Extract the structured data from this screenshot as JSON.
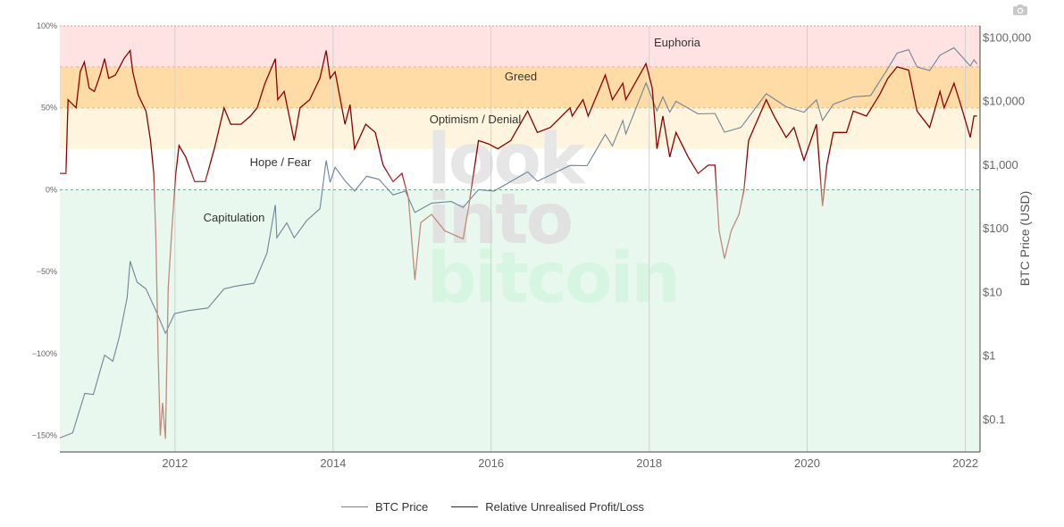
{
  "toolbar": {
    "camera_icon": "camera-icon"
  },
  "colors": {
    "euphoria_zone": "#ffe3e3",
    "greed_zone": "#ffdca6",
    "optimism_zone": "#fff4dd",
    "hope_zone": "#ffffff",
    "capitulation_zone": "#e8f8ee",
    "btc_price": "#6e8499",
    "nupl": "#8b0000",
    "nupl_faded": "#c28a7a",
    "zero_line": "#5fae90"
  },
  "watermark": [
    "look",
    "into",
    "bitcoin"
  ],
  "chart_data": {
    "type": "line",
    "title": "",
    "xlabel": "",
    "ylabel_left": "",
    "ylabel_right": "BTC Price (USD)",
    "x_range": [
      "2010-07-18",
      "2022-03-10"
    ],
    "x_ticks": [
      "2012",
      "2014",
      "2016",
      "2018",
      "2020",
      "2022"
    ],
    "y_left_range": [
      -1.6,
      1.0
    ],
    "y_left_ticks": [
      "100%",
      "50%",
      "0%",
      "−50%",
      "−100%",
      "−150%"
    ],
    "y_right_scale": "log",
    "y_right_range": [
      0.03,
      150000
    ],
    "y_right_ticks": [
      "$100,000",
      "$10,000",
      "$1,000",
      "$100",
      "$10",
      "$1",
      "$0.1"
    ],
    "grid": true,
    "legend_position": "bottom-center",
    "zones": [
      {
        "name": "Euphoria",
        "from": 0.75,
        "to": 1.0
      },
      {
        "name": "Greed",
        "from": 0.5,
        "to": 0.75
      },
      {
        "name": "Optimism / Denial",
        "from": 0.25,
        "to": 0.5
      },
      {
        "name": "Hope / Fear",
        "from": 0.0,
        "to": 0.25
      },
      {
        "name": "Capitulation",
        "from": -1.6,
        "to": 0.0
      }
    ],
    "series": [
      {
        "name": "BTC Price",
        "axis": "right",
        "points": [
          [
            "2010-07-18",
            0.05
          ],
          [
            "2010-09-15",
            0.06
          ],
          [
            "2010-11-10",
            0.25
          ],
          [
            "2010-12-20",
            0.24
          ],
          [
            "2011-02-10",
            1.0
          ],
          [
            "2011-03-20",
            0.8
          ],
          [
            "2011-04-20",
            2.0
          ],
          [
            "2011-05-25",
            8.0
          ],
          [
            "2011-06-08",
            30.0
          ],
          [
            "2011-07-10",
            14.0
          ],
          [
            "2011-08-20",
            11.0
          ],
          [
            "2011-10-05",
            5.0
          ],
          [
            "2011-11-18",
            2.2
          ],
          [
            "2011-12-30",
            4.5
          ],
          [
            "2012-03-01",
            5.0
          ],
          [
            "2012-06-01",
            5.5
          ],
          [
            "2012-08-15",
            11.0
          ],
          [
            "2012-10-01",
            12.0
          ],
          [
            "2013-01-01",
            13.5
          ],
          [
            "2013-03-01",
            40.0
          ],
          [
            "2013-04-09",
            230.0
          ],
          [
            "2013-04-16",
            70.0
          ],
          [
            "2013-06-01",
            120.0
          ],
          [
            "2013-07-05",
            70.0
          ],
          [
            "2013-09-01",
            130.0
          ],
          [
            "2013-11-01",
            200.0
          ],
          [
            "2013-11-30",
            1150.0
          ],
          [
            "2013-12-18",
            520.0
          ],
          [
            "2014-01-10",
            900.0
          ],
          [
            "2014-02-25",
            550.0
          ],
          [
            "2014-04-10",
            380.0
          ],
          [
            "2014-06-05",
            650.0
          ],
          [
            "2014-08-01",
            580.0
          ],
          [
            "2014-10-05",
            330.0
          ],
          [
            "2014-12-01",
            380.0
          ],
          [
            "2015-01-14",
            175.0
          ],
          [
            "2015-04-01",
            245.0
          ],
          [
            "2015-07-01",
            260.0
          ],
          [
            "2015-08-25",
            210.0
          ],
          [
            "2015-11-04",
            400.0
          ],
          [
            "2016-01-15",
            380.0
          ],
          [
            "2016-06-18",
            760.0
          ],
          [
            "2016-08-02",
            540.0
          ],
          [
            "2016-12-31",
            960.0
          ],
          [
            "2017-03-20",
            950.0
          ],
          [
            "2017-06-12",
            2950.0
          ],
          [
            "2017-07-15",
            1950.0
          ],
          [
            "2017-09-01",
            4900.0
          ],
          [
            "2017-09-15",
            3000.0
          ],
          [
            "2017-12-17",
            19000.0
          ],
          [
            "2018-02-06",
            6900.0
          ],
          [
            "2018-03-05",
            11500.0
          ],
          [
            "2018-04-06",
            6600.0
          ],
          [
            "2018-05-05",
            9800.0
          ],
          [
            "2018-08-15",
            6200.0
          ],
          [
            "2018-11-01",
            6300.0
          ],
          [
            "2018-12-15",
            3200.0
          ],
          [
            "2019-03-01",
            3800.0
          ],
          [
            "2019-06-26",
            12900.0
          ],
          [
            "2019-09-26",
            8000.0
          ],
          [
            "2019-12-17",
            6600.0
          ],
          [
            "2020-02-13",
            10300.0
          ],
          [
            "2020-03-12",
            4900.0
          ],
          [
            "2020-05-01",
            8800.0
          ],
          [
            "2020-08-01",
            11500.0
          ],
          [
            "2020-10-20",
            12000.0
          ],
          [
            "2020-12-31",
            29000.0
          ],
          [
            "2021-02-20",
            56000.0
          ],
          [
            "2021-04-14",
            63500.0
          ],
          [
            "2021-05-23",
            34000.0
          ],
          [
            "2021-07-20",
            29800.0
          ],
          [
            "2021-09-06",
            52000.0
          ],
          [
            "2021-11-10",
            68000.0
          ],
          [
            "2022-01-24",
            35000.0
          ],
          [
            "2022-02-10",
            44000.0
          ],
          [
            "2022-02-24",
            38000.0
          ]
        ]
      },
      {
        "name": "Relative Unrealised Profit/Loss",
        "axis": "left",
        "points": [
          [
            "2010-07-18",
            0.1
          ],
          [
            "2010-08-15",
            0.1
          ],
          [
            "2010-08-25",
            0.55
          ],
          [
            "2010-10-01",
            0.5
          ],
          [
            "2010-10-20",
            0.72
          ],
          [
            "2010-11-08",
            0.78
          ],
          [
            "2010-12-01",
            0.62
          ],
          [
            "2010-12-25",
            0.6
          ],
          [
            "2011-01-20",
            0.7
          ],
          [
            "2011-02-10",
            0.8
          ],
          [
            "2011-03-01",
            0.68
          ],
          [
            "2011-04-01",
            0.7
          ],
          [
            "2011-05-10",
            0.8
          ],
          [
            "2011-06-08",
            0.85
          ],
          [
            "2011-06-20",
            0.72
          ],
          [
            "2011-07-15",
            0.58
          ],
          [
            "2011-08-20",
            0.48
          ],
          [
            "2011-09-10",
            0.3
          ],
          [
            "2011-09-25",
            0.1
          ],
          [
            "2011-10-05",
            -0.3
          ],
          [
            "2011-10-15",
            -1.0
          ],
          [
            "2011-10-25",
            -1.5
          ],
          [
            "2011-11-05",
            -1.3
          ],
          [
            "2011-11-18",
            -1.52
          ],
          [
            "2011-12-01",
            -0.6
          ],
          [
            "2011-12-20",
            -0.2
          ],
          [
            "2012-01-05",
            0.1
          ],
          [
            "2012-01-20",
            0.27
          ],
          [
            "2012-02-20",
            0.2
          ],
          [
            "2012-04-01",
            0.05
          ],
          [
            "2012-05-20",
            0.05
          ],
          [
            "2012-07-01",
            0.25
          ],
          [
            "2012-08-15",
            0.5
          ],
          [
            "2012-09-15",
            0.4
          ],
          [
            "2012-11-01",
            0.4
          ],
          [
            "2012-12-15",
            0.45
          ],
          [
            "2013-01-15",
            0.5
          ],
          [
            "2013-02-20",
            0.65
          ],
          [
            "2013-04-09",
            0.8
          ],
          [
            "2013-04-20",
            0.55
          ],
          [
            "2013-05-20",
            0.6
          ],
          [
            "2013-07-05",
            0.3
          ],
          [
            "2013-08-01",
            0.5
          ],
          [
            "2013-09-15",
            0.55
          ],
          [
            "2013-11-01",
            0.68
          ],
          [
            "2013-11-30",
            0.85
          ],
          [
            "2013-12-18",
            0.68
          ],
          [
            "2014-01-10",
            0.72
          ],
          [
            "2014-02-25",
            0.4
          ],
          [
            "2014-03-20",
            0.52
          ],
          [
            "2014-04-10",
            0.25
          ],
          [
            "2014-06-01",
            0.4
          ],
          [
            "2014-07-15",
            0.35
          ],
          [
            "2014-08-20",
            0.15
          ],
          [
            "2014-10-05",
            0.05
          ],
          [
            "2014-11-15",
            0.1
          ],
          [
            "2014-12-15",
            -0.05
          ],
          [
            "2015-01-14",
            -0.55
          ],
          [
            "2015-02-10",
            -0.2
          ],
          [
            "2015-04-01",
            -0.15
          ],
          [
            "2015-06-01",
            -0.25
          ],
          [
            "2015-08-25",
            -0.3
          ],
          [
            "2015-09-20",
            -0.1
          ],
          [
            "2015-11-04",
            0.3
          ],
          [
            "2015-12-20",
            0.28
          ],
          [
            "2016-02-01",
            0.25
          ],
          [
            "2016-04-01",
            0.3
          ],
          [
            "2016-06-18",
            0.48
          ],
          [
            "2016-08-02",
            0.35
          ],
          [
            "2016-10-01",
            0.38
          ],
          [
            "2016-12-31",
            0.5
          ],
          [
            "2017-01-10",
            0.45
          ],
          [
            "2017-03-01",
            0.55
          ],
          [
            "2017-03-25",
            0.45
          ],
          [
            "2017-06-12",
            0.7
          ],
          [
            "2017-07-15",
            0.55
          ],
          [
            "2017-09-01",
            0.65
          ],
          [
            "2017-09-15",
            0.55
          ],
          [
            "2017-12-17",
            0.77
          ],
          [
            "2018-01-15",
            0.62
          ],
          [
            "2018-02-06",
            0.25
          ],
          [
            "2018-03-05",
            0.45
          ],
          [
            "2018-04-06",
            0.2
          ],
          [
            "2018-05-05",
            0.35
          ],
          [
            "2018-06-30",
            0.2
          ],
          [
            "2018-08-15",
            0.1
          ],
          [
            "2018-10-01",
            0.15
          ],
          [
            "2018-11-01",
            0.15
          ],
          [
            "2018-11-20",
            -0.25
          ],
          [
            "2018-12-15",
            -0.42
          ],
          [
            "2019-01-15",
            -0.25
          ],
          [
            "2019-02-20",
            -0.15
          ],
          [
            "2019-03-15",
            0.0
          ],
          [
            "2019-04-05",
            0.3
          ],
          [
            "2019-06-26",
            0.55
          ],
          [
            "2019-08-01",
            0.45
          ],
          [
            "2019-09-26",
            0.32
          ],
          [
            "2019-11-01",
            0.38
          ],
          [
            "2019-12-17",
            0.18
          ],
          [
            "2020-02-13",
            0.4
          ],
          [
            "2020-03-12",
            -0.1
          ],
          [
            "2020-04-01",
            0.15
          ],
          [
            "2020-05-01",
            0.35
          ],
          [
            "2020-07-01",
            0.35
          ],
          [
            "2020-08-01",
            0.48
          ],
          [
            "2020-10-01",
            0.45
          ],
          [
            "2020-12-01",
            0.58
          ],
          [
            "2021-01-08",
            0.68
          ],
          [
            "2021-02-20",
            0.75
          ],
          [
            "2021-04-14",
            0.73
          ],
          [
            "2021-05-23",
            0.48
          ],
          [
            "2021-07-20",
            0.38
          ],
          [
            "2021-09-06",
            0.6
          ],
          [
            "2021-09-25",
            0.5
          ],
          [
            "2021-11-10",
            0.65
          ],
          [
            "2021-12-15",
            0.5
          ],
          [
            "2022-01-24",
            0.32
          ],
          [
            "2022-02-10",
            0.45
          ],
          [
            "2022-02-24",
            0.45
          ]
        ]
      }
    ]
  }
}
